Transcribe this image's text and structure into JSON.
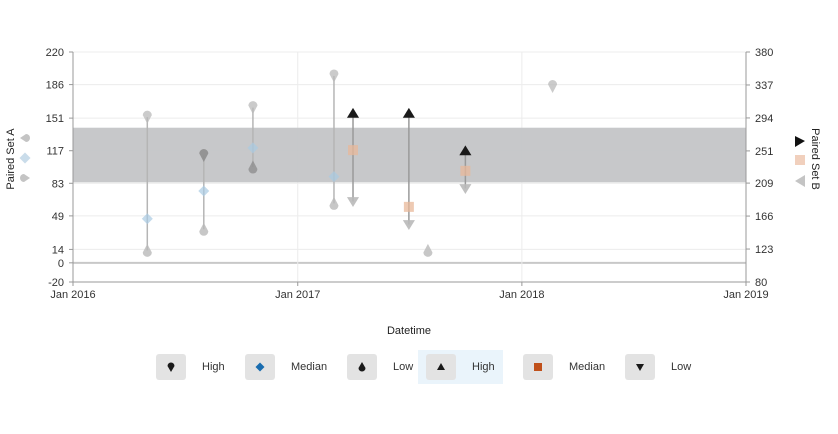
{
  "chart_data": {
    "type": "scatter",
    "xlabel": "Datetime",
    "ylabel_left": "Paired Set A",
    "ylabel_right": "Paired Set B",
    "x_range": [
      "2016-01-01",
      "2019-01-01"
    ],
    "x_ticks": [
      {
        "date": "2016-01-01",
        "label": "Jan 2016"
      },
      {
        "date": "2017-01-01",
        "label": "Jan 2017"
      },
      {
        "date": "2018-01-01",
        "label": "Jan 2018"
      },
      {
        "date": "2019-01-01",
        "label": "Jan 2019"
      }
    ],
    "y_left": {
      "range": [
        -20,
        220
      ],
      "ticks": [
        -20,
        0,
        14,
        49,
        83,
        117,
        151,
        186,
        220
      ]
    },
    "y_right": {
      "range": [
        80,
        380
      ],
      "ticks": [
        80,
        123,
        166,
        209,
        251,
        294,
        337,
        380
      ]
    },
    "band": {
      "axis": "left",
      "from": 84,
      "to": 141
    },
    "grid": true,
    "legend_position": "bottom",
    "set_a": [
      {
        "date": "2016-05-01",
        "high": 152,
        "median": 46,
        "low": 13
      },
      {
        "date": "2016-08-01",
        "high": 112,
        "median": 75,
        "low": 35
      },
      {
        "date": "2016-10-20",
        "high": 162,
        "median": 120,
        "low": 100
      },
      {
        "date": "2017-03-01",
        "high": 195,
        "median": 90,
        "low": 62
      },
      {
        "date": "2017-08-01",
        "high": null,
        "median": null,
        "low": 13
      },
      {
        "date": "2018-02-20",
        "high": 184,
        "median": null,
        "low": null
      }
    ],
    "set_b": [
      {
        "date": "2017-04-01",
        "high": 300,
        "median": 252,
        "low": 185
      },
      {
        "date": "2017-07-01",
        "high": 300,
        "median": 178,
        "low": 155
      },
      {
        "date": "2017-10-01",
        "high": 251,
        "median": 225,
        "low": 202
      }
    ],
    "colors": {
      "set_a_high": "#b9b9b9",
      "set_a_median": "#a9cbe3",
      "set_a_low": "#b9b9b9",
      "set_b_high": "#1a1a1a",
      "set_b_median": "#e8b89a",
      "set_b_low": "#b9b9b9",
      "band": "#c4c5c7",
      "stem_a": "#b5b5b5",
      "stem_b": "#9a9a9a"
    }
  },
  "legend": [
    {
      "label": "High",
      "icon": "pin-icon",
      "color": "#1a1a1a"
    },
    {
      "label": "Median",
      "icon": "diamond-icon",
      "color": "#1a6db0"
    },
    {
      "label": "Low",
      "icon": "drop-icon",
      "color": "#1a1a1a"
    },
    {
      "label": "High",
      "icon": "triangle-up-icon",
      "color": "#1a1a1a",
      "active": true
    },
    {
      "label": "Median",
      "icon": "square-icon",
      "color": "#c0501a"
    },
    {
      "label": "Low",
      "icon": "triangle-down-icon",
      "color": "#1a1a1a"
    }
  ]
}
